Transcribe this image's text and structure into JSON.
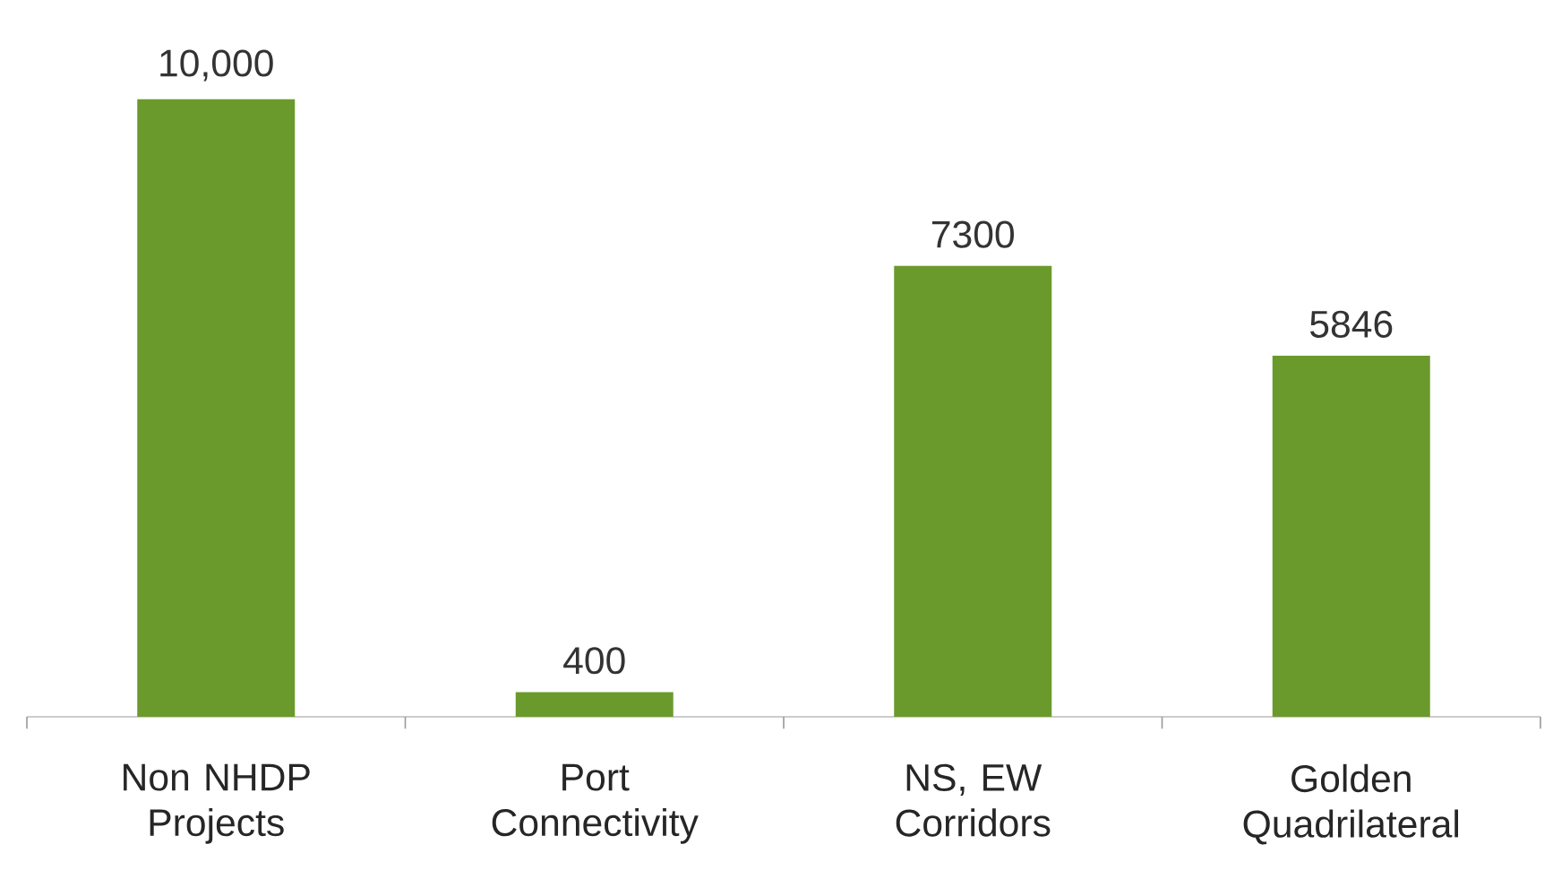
{
  "chart_data": {
    "type": "bar",
    "categories": [
      "Non NHDP Projects",
      "Port Connectivity",
      "NS, EW Corridors",
      "Golden Quadrilateral"
    ],
    "values": [
      10000,
      400,
      7300,
      5846
    ],
    "value_labels": [
      "10,000",
      "400",
      "7300",
      "5846"
    ],
    "color": "#6b9a2c"
  }
}
